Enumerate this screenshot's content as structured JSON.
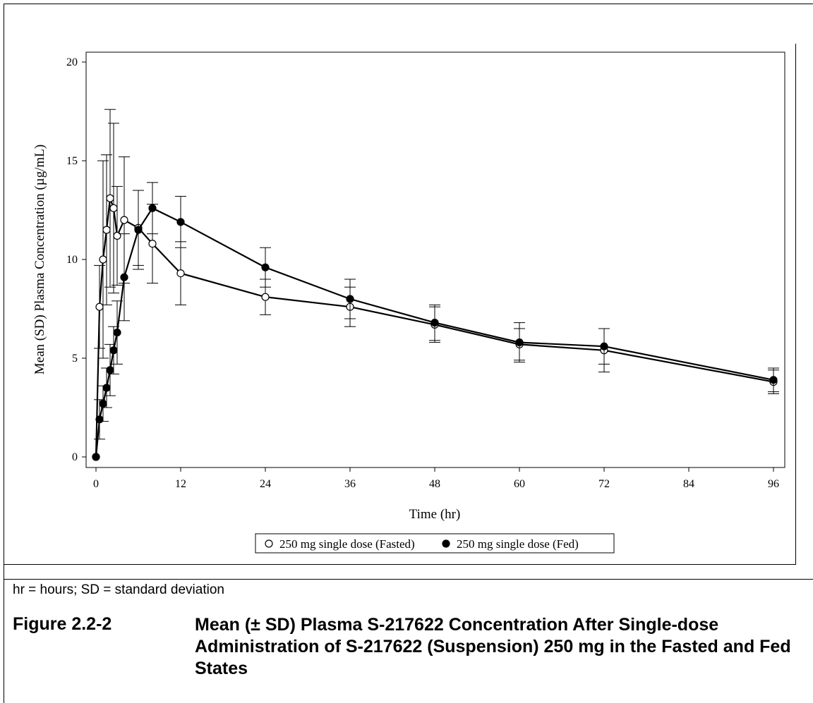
{
  "note": "hr = hours; SD = standard deviation",
  "figure": {
    "number": "Figure 2.2-2",
    "title": "Mean (± SD) Plasma S-217622 Concentration After Single-dose Administration of S-217622 (Suspension) 250 mg in the Fasted and Fed States"
  },
  "colors": {
    "line": "#000000",
    "fasted_marker_fill": "#ffffff",
    "fed_marker_fill": "#000000"
  },
  "chart_data": {
    "type": "line",
    "xlabel": "Time (hr)",
    "ylabel": "Mean (SD) Plasma Concentration (µg/mL)",
    "xlim": [
      0,
      96
    ],
    "ylim": [
      0,
      20
    ],
    "xticks": [
      0,
      12,
      24,
      36,
      48,
      60,
      72,
      84,
      96
    ],
    "yticks": [
      0,
      5,
      10,
      15,
      20
    ],
    "grid": false,
    "legend_position": "bottom",
    "series": [
      {
        "name": "250 mg single dose (Fasted)",
        "marker": "open-circle",
        "x": [
          0,
          0.5,
          1,
          1.5,
          2,
          2.5,
          3,
          4,
          6,
          8,
          12,
          24,
          36,
          48,
          60,
          72,
          96
        ],
        "y": [
          0,
          7.6,
          10.0,
          11.5,
          13.1,
          12.6,
          11.2,
          12.0,
          11.6,
          10.8,
          9.3,
          8.1,
          7.6,
          6.7,
          5.7,
          5.4,
          3.8
        ],
        "err": [
          0,
          2.1,
          5.0,
          3.8,
          4.5,
          4.3,
          2.5,
          3.2,
          1.9,
          2.0,
          1.6,
          0.9,
          1.0,
          0.9,
          0.8,
          1.1,
          0.6
        ]
      },
      {
        "name": "250 mg single dose (Fed)",
        "marker": "filled-circle",
        "x": [
          0,
          0.5,
          1,
          1.5,
          2,
          2.5,
          3,
          4,
          6,
          8,
          12,
          24,
          36,
          48,
          60,
          72,
          96
        ],
        "y": [
          0,
          1.9,
          2.7,
          3.5,
          4.4,
          5.4,
          6.3,
          9.1,
          11.5,
          12.6,
          11.9,
          9.6,
          8.0,
          6.8,
          5.8,
          5.6,
          3.9
        ],
        "err": [
          0,
          1.0,
          0.9,
          1.0,
          1.3,
          1.2,
          1.6,
          2.2,
          2.0,
          1.3,
          1.3,
          1.0,
          1.0,
          0.9,
          1.0,
          0.9,
          0.6
        ]
      }
    ]
  }
}
